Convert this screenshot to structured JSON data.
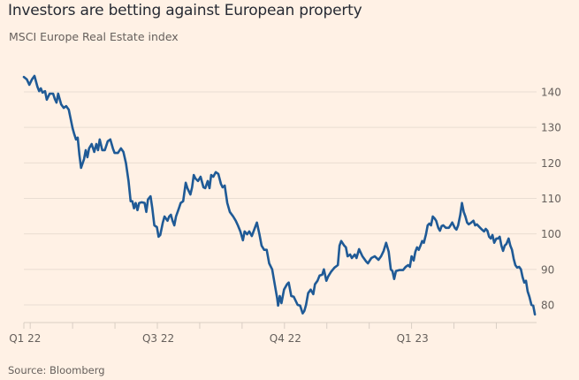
{
  "chart_data": {
    "type": "line",
    "title": "Investors are betting against European property",
    "subtitle": "MSCI Europe Real Estate index",
    "source": "Source: Bloomberg",
    "xlabel": "",
    "ylabel": "",
    "x_units": "months from first labelled tick (Q1 22)",
    "xlim": [
      -0.15,
      11.95
    ],
    "ylim": [
      76,
      146
    ],
    "y_ticks": [
      80,
      90,
      100,
      110,
      120,
      130,
      140
    ],
    "y_tick_labels": [
      "80",
      "90",
      "100",
      "110",
      "120",
      "130",
      "140"
    ],
    "x_ticks": [
      -0.15,
      0,
      1,
      2,
      3,
      4,
      5,
      6,
      7,
      8,
      9,
      10,
      11
    ],
    "x_tick_labels": [
      {
        "x": 0,
        "label": "Q1 22"
      },
      {
        "x": 3,
        "label": "Q3 22"
      },
      {
        "x": 6,
        "label": "Q4 22"
      },
      {
        "x": 9,
        "label": "Q1 23"
      }
    ],
    "grid": "horizontal",
    "y_axis_side": "right",
    "legend": "none",
    "colors": {
      "line": "#1f5a96",
      "background": "#fff1e5",
      "grid": "#e9ddd2"
    },
    "series": [
      {
        "name": "MSCI Europe Real Estate index",
        "points": [
          [
            -0.15,
            144.2
          ],
          [
            -0.08,
            143.5
          ],
          [
            -0.02,
            142.0
          ],
          [
            0.04,
            143.5
          ],
          [
            0.1,
            144.5
          ],
          [
            0.17,
            141.5
          ],
          [
            0.21,
            140.2
          ],
          [
            0.25,
            141.0
          ],
          [
            0.29,
            139.8
          ],
          [
            0.35,
            140.2
          ],
          [
            0.39,
            137.8
          ],
          [
            0.46,
            139.5
          ],
          [
            0.54,
            139.5
          ],
          [
            0.58,
            138.0
          ],
          [
            0.62,
            137.0
          ],
          [
            0.66,
            139.5
          ],
          [
            0.73,
            136.5
          ],
          [
            0.79,
            135.5
          ],
          [
            0.85,
            136.0
          ],
          [
            0.91,
            135.0
          ],
          [
            1.0,
            129.8
          ],
          [
            1.04,
            128.1
          ],
          [
            1.08,
            126.6
          ],
          [
            1.12,
            127.1
          ],
          [
            1.16,
            122.3
          ],
          [
            1.2,
            118.6
          ],
          [
            1.27,
            121.1
          ],
          [
            1.31,
            123.6
          ],
          [
            1.35,
            121.6
          ],
          [
            1.39,
            124.1
          ],
          [
            1.45,
            125.3
          ],
          [
            1.51,
            123.1
          ],
          [
            1.56,
            125.3
          ],
          [
            1.6,
            123.6
          ],
          [
            1.64,
            126.6
          ],
          [
            1.7,
            123.6
          ],
          [
            1.76,
            123.6
          ],
          [
            1.83,
            126.1
          ],
          [
            1.89,
            126.6
          ],
          [
            1.95,
            124.1
          ],
          [
            1.99,
            122.8
          ],
          [
            2.07,
            122.8
          ],
          [
            2.14,
            124.1
          ],
          [
            2.2,
            123.1
          ],
          [
            2.26,
            119.9
          ],
          [
            2.32,
            114.9
          ],
          [
            2.37,
            109.2
          ],
          [
            2.41,
            109.2
          ],
          [
            2.45,
            107.2
          ],
          [
            2.49,
            108.7
          ],
          [
            2.53,
            106.7
          ],
          [
            2.57,
            108.7
          ],
          [
            2.63,
            108.9
          ],
          [
            2.7,
            108.7
          ],
          [
            2.74,
            106.2
          ],
          [
            2.78,
            109.7
          ],
          [
            2.84,
            110.6
          ],
          [
            2.88,
            107.4
          ],
          [
            2.93,
            102.4
          ],
          [
            2.99,
            101.9
          ],
          [
            3.03,
            99.2
          ],
          [
            3.07,
            99.7
          ],
          [
            3.13,
            103.2
          ],
          [
            3.17,
            104.9
          ],
          [
            3.24,
            103.7
          ],
          [
            3.28,
            104.9
          ],
          [
            3.32,
            105.4
          ],
          [
            3.36,
            103.7
          ],
          [
            3.4,
            102.4
          ],
          [
            3.44,
            104.9
          ],
          [
            3.51,
            107.2
          ],
          [
            3.55,
            108.7
          ],
          [
            3.61,
            109.2
          ],
          [
            3.67,
            114.4
          ],
          [
            3.71,
            112.9
          ],
          [
            3.78,
            111.1
          ],
          [
            3.82,
            113.1
          ],
          [
            3.86,
            116.6
          ],
          [
            3.9,
            115.6
          ],
          [
            3.96,
            114.9
          ],
          [
            4.02,
            116.1
          ],
          [
            4.09,
            113.1
          ],
          [
            4.13,
            112.9
          ],
          [
            4.19,
            114.9
          ],
          [
            4.23,
            112.9
          ],
          [
            4.27,
            116.6
          ],
          [
            4.32,
            116.1
          ],
          [
            4.38,
            117.4
          ],
          [
            4.44,
            116.9
          ],
          [
            4.5,
            114.1
          ],
          [
            4.54,
            113.1
          ],
          [
            4.59,
            113.6
          ],
          [
            4.65,
            108.7
          ],
          [
            4.71,
            106.2
          ],
          [
            4.79,
            104.9
          ],
          [
            4.85,
            103.7
          ],
          [
            4.9,
            102.4
          ],
          [
            4.96,
            100.7
          ],
          [
            5.02,
            98.2
          ],
          [
            5.06,
            100.7
          ],
          [
            5.12,
            99.9
          ],
          [
            5.17,
            100.7
          ],
          [
            5.23,
            99.4
          ],
          [
            5.27,
            100.7
          ],
          [
            5.35,
            103.2
          ],
          [
            5.41,
            99.9
          ],
          [
            5.46,
            96.7
          ],
          [
            5.52,
            95.5
          ],
          [
            5.58,
            95.5
          ],
          [
            5.64,
            91.7
          ],
          [
            5.71,
            90.0
          ],
          [
            5.77,
            85.8
          ],
          [
            5.83,
            81.8
          ],
          [
            5.85,
            79.8
          ],
          [
            5.89,
            82.5
          ],
          [
            5.93,
            80.5
          ],
          [
            5.99,
            84.3
          ],
          [
            6.06,
            85.8
          ],
          [
            6.1,
            86.3
          ],
          [
            6.16,
            82.5
          ],
          [
            6.22,
            82.3
          ],
          [
            6.31,
            80.0
          ],
          [
            6.37,
            79.8
          ],
          [
            6.43,
            77.6
          ],
          [
            6.47,
            78.3
          ],
          [
            6.51,
            80.0
          ],
          [
            6.56,
            83.3
          ],
          [
            6.62,
            84.3
          ],
          [
            6.68,
            83.0
          ],
          [
            6.72,
            85.8
          ],
          [
            6.78,
            86.8
          ],
          [
            6.83,
            88.3
          ],
          [
            6.89,
            88.5
          ],
          [
            6.93,
            90.0
          ],
          [
            6.99,
            86.8
          ],
          [
            7.03,
            88.0
          ],
          [
            7.1,
            89.3
          ],
          [
            7.18,
            90.5
          ],
          [
            7.26,
            91.2
          ],
          [
            7.3,
            96.7
          ],
          [
            7.34,
            98.0
          ],
          [
            7.41,
            96.7
          ],
          [
            7.45,
            96.2
          ],
          [
            7.49,
            93.7
          ],
          [
            7.55,
            94.2
          ],
          [
            7.59,
            93.2
          ],
          [
            7.66,
            94.2
          ],
          [
            7.7,
            93.2
          ],
          [
            7.76,
            95.7
          ],
          [
            7.84,
            93.7
          ],
          [
            7.93,
            92.2
          ],
          [
            7.97,
            91.7
          ],
          [
            8.05,
            93.2
          ],
          [
            8.13,
            93.7
          ],
          [
            8.22,
            92.7
          ],
          [
            8.28,
            93.7
          ],
          [
            8.34,
            95.2
          ],
          [
            8.4,
            97.5
          ],
          [
            8.46,
            95.0
          ],
          [
            8.51,
            90.0
          ],
          [
            8.55,
            89.5
          ],
          [
            8.59,
            87.3
          ],
          [
            8.63,
            89.5
          ],
          [
            8.71,
            89.8
          ],
          [
            8.8,
            89.8
          ],
          [
            8.86,
            90.7
          ],
          [
            8.92,
            91.2
          ],
          [
            8.96,
            90.7
          ],
          [
            9.0,
            93.7
          ],
          [
            9.05,
            92.5
          ],
          [
            9.09,
            95.0
          ],
          [
            9.13,
            96.2
          ],
          [
            9.17,
            95.5
          ],
          [
            9.21,
            96.7
          ],
          [
            9.25,
            98.0
          ],
          [
            9.29,
            97.5
          ],
          [
            9.34,
            99.9
          ],
          [
            9.38,
            102.4
          ],
          [
            9.42,
            102.9
          ],
          [
            9.46,
            102.4
          ],
          [
            9.5,
            104.9
          ],
          [
            9.54,
            104.4
          ],
          [
            9.58,
            103.7
          ],
          [
            9.63,
            101.7
          ],
          [
            9.67,
            100.9
          ],
          [
            9.71,
            102.2
          ],
          [
            9.75,
            102.4
          ],
          [
            9.81,
            101.7
          ],
          [
            9.88,
            101.7
          ],
          [
            9.92,
            102.4
          ],
          [
            9.96,
            103.2
          ],
          [
            10.02,
            101.7
          ],
          [
            10.06,
            101.2
          ],
          [
            10.1,
            102.4
          ],
          [
            10.15,
            105.4
          ],
          [
            10.19,
            108.7
          ],
          [
            10.23,
            106.2
          ],
          [
            10.27,
            104.9
          ],
          [
            10.31,
            103.2
          ],
          [
            10.35,
            102.7
          ],
          [
            10.41,
            103.2
          ],
          [
            10.46,
            103.7
          ],
          [
            10.5,
            102.4
          ],
          [
            10.54,
            102.7
          ],
          [
            10.58,
            102.2
          ],
          [
            10.62,
            101.7
          ],
          [
            10.66,
            101.2
          ],
          [
            10.71,
            100.7
          ],
          [
            10.75,
            101.4
          ],
          [
            10.79,
            100.9
          ],
          [
            10.83,
            99.2
          ],
          [
            10.87,
            98.7
          ],
          [
            10.91,
            99.7
          ],
          [
            10.95,
            97.5
          ],
          [
            11.0,
            98.7
          ],
          [
            11.04,
            98.7
          ],
          [
            11.08,
            99.2
          ],
          [
            11.12,
            96.7
          ],
          [
            11.16,
            95.2
          ],
          [
            11.2,
            96.7
          ],
          [
            11.24,
            97.2
          ],
          [
            11.29,
            98.7
          ],
          [
            11.33,
            96.7
          ],
          [
            11.37,
            95.5
          ],
          [
            11.41,
            93.0
          ],
          [
            11.45,
            91.2
          ],
          [
            11.49,
            90.5
          ],
          [
            11.54,
            90.7
          ],
          [
            11.58,
            90.0
          ],
          [
            11.62,
            87.8
          ],
          [
            11.66,
            86.3
          ],
          [
            11.7,
            86.8
          ],
          [
            11.74,
            83.8
          ],
          [
            11.78,
            82.3
          ],
          [
            11.83,
            80.0
          ],
          [
            11.87,
            79.8
          ],
          [
            11.91,
            77.3
          ]
        ]
      }
    ]
  }
}
